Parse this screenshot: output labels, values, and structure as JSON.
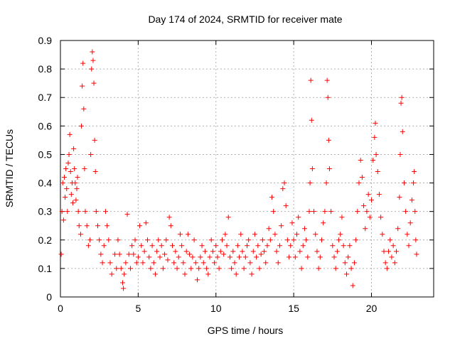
{
  "chart_data": {
    "type": "scatter",
    "title": "Day 174 of 2024, SRMTID for receiver mate",
    "xlabel": "GPS time / hours",
    "ylabel": "SRMTID / TECUs",
    "xlim": [
      0,
      24
    ],
    "ylim": [
      0,
      0.9
    ],
    "xticks": [
      0,
      5,
      10,
      15,
      20
    ],
    "xtick_labels": [
      "0",
      "5",
      "10",
      "15",
      "20"
    ],
    "yticks": [
      0,
      0.1,
      0.2,
      0.3,
      0.4,
      0.5,
      0.6,
      0.7,
      0.8,
      0.9
    ],
    "ytick_labels": [
      "0",
      "0.1",
      "0.2",
      "0.3",
      "0.4",
      "0.5",
      "0.6",
      "0.7",
      "0.8",
      "0.9"
    ],
    "grid": true,
    "marker": "+",
    "color": "#ff0000",
    "series": [
      {
        "name": "SRMTID",
        "points": [
          [
            0.05,
            0.15
          ],
          [
            0.1,
            0.3
          ],
          [
            0.15,
            0.4
          ],
          [
            0.2,
            0.27
          ],
          [
            0.25,
            0.42
          ],
          [
            0.3,
            0.35
          ],
          [
            0.35,
            0.45
          ],
          [
            0.4,
            0.38
          ],
          [
            0.45,
            0.3
          ],
          [
            0.5,
            0.47
          ],
          [
            0.55,
            0.5
          ],
          [
            0.6,
            0.57
          ],
          [
            0.65,
            0.44
          ],
          [
            0.7,
            0.36
          ],
          [
            0.75,
            0.4
          ],
          [
            0.8,
            0.33
          ],
          [
            0.85,
            0.52
          ],
          [
            0.9,
            0.45
          ],
          [
            0.95,
            0.4
          ],
          [
            1.0,
            0.34
          ],
          [
            1.05,
            0.38
          ],
          [
            1.1,
            0.42
          ],
          [
            1.15,
            0.3
          ],
          [
            1.2,
            0.25
          ],
          [
            1.3,
            0.22
          ],
          [
            1.35,
            0.6
          ],
          [
            1.4,
            0.74
          ],
          [
            1.45,
            0.82
          ],
          [
            1.5,
            0.66
          ],
          [
            1.55,
            0.45
          ],
          [
            1.6,
            0.3
          ],
          [
            1.7,
            0.25
          ],
          [
            1.8,
            0.18
          ],
          [
            1.9,
            0.2
          ],
          [
            1.95,
            0.5
          ],
          [
            2.0,
            0.8
          ],
          [
            2.05,
            0.86
          ],
          [
            2.1,
            0.83
          ],
          [
            2.15,
            0.75
          ],
          [
            2.2,
            0.55
          ],
          [
            2.25,
            0.44
          ],
          [
            2.3,
            0.3
          ],
          [
            2.4,
            0.25
          ],
          [
            2.5,
            0.2
          ],
          [
            2.6,
            0.15
          ],
          [
            2.7,
            0.12
          ],
          [
            2.8,
            0.18
          ],
          [
            2.9,
            0.3
          ],
          [
            3.0,
            0.25
          ],
          [
            3.1,
            0.2
          ],
          [
            3.2,
            0.12
          ],
          [
            3.3,
            0.08
          ],
          [
            3.5,
            0.15
          ],
          [
            3.6,
            0.1
          ],
          [
            3.7,
            0.2
          ],
          [
            3.8,
            0.15
          ],
          [
            3.9,
            0.1
          ],
          [
            4.0,
            0.05
          ],
          [
            4.05,
            0.03
          ],
          [
            4.1,
            0.08
          ],
          [
            4.2,
            0.12
          ],
          [
            4.3,
            0.29
          ],
          [
            4.4,
            0.15
          ],
          [
            4.5,
            0.1
          ],
          [
            4.6,
            0.18
          ],
          [
            4.7,
            0.15
          ],
          [
            4.8,
            0.2
          ],
          [
            4.9,
            0.12
          ],
          [
            5.0,
            0.14
          ],
          [
            5.1,
            0.25
          ],
          [
            5.2,
            0.18
          ],
          [
            5.3,
            0.12
          ],
          [
            5.4,
            0.16
          ],
          [
            5.5,
            0.26
          ],
          [
            5.6,
            0.2
          ],
          [
            5.7,
            0.14
          ],
          [
            5.8,
            0.1
          ],
          [
            5.9,
            0.18
          ],
          [
            6.0,
            0.12
          ],
          [
            6.1,
            0.08
          ],
          [
            6.2,
            0.16
          ],
          [
            6.3,
            0.2
          ],
          [
            6.4,
            0.14
          ],
          [
            6.5,
            0.18
          ],
          [
            6.6,
            0.1
          ],
          [
            6.7,
            0.15
          ],
          [
            6.8,
            0.2
          ],
          [
            6.9,
            0.13
          ],
          [
            7.0,
            0.28
          ],
          [
            7.1,
            0.25
          ],
          [
            7.2,
            0.18
          ],
          [
            7.3,
            0.12
          ],
          [
            7.4,
            0.16
          ],
          [
            7.5,
            0.1
          ],
          [
            7.6,
            0.14
          ],
          [
            7.7,
            0.22
          ],
          [
            7.8,
            0.18
          ],
          [
            7.9,
            0.12
          ],
          [
            8.0,
            0.08
          ],
          [
            8.1,
            0.16
          ],
          [
            8.2,
            0.22
          ],
          [
            8.3,
            0.15
          ],
          [
            8.4,
            0.1
          ],
          [
            8.5,
            0.14
          ],
          [
            8.6,
            0.2
          ],
          [
            8.7,
            0.12
          ],
          [
            8.8,
            0.06
          ],
          [
            8.9,
            0.1
          ],
          [
            9.0,
            0.14
          ],
          [
            9.1,
            0.18
          ],
          [
            9.2,
            0.12
          ],
          [
            9.3,
            0.16
          ],
          [
            9.4,
            0.1
          ],
          [
            9.5,
            0.08
          ],
          [
            9.6,
            0.14
          ],
          [
            9.7,
            0.2
          ],
          [
            9.8,
            0.16
          ],
          [
            9.9,
            0.12
          ],
          [
            10.0,
            0.18
          ],
          [
            10.1,
            0.14
          ],
          [
            10.2,
            0.1
          ],
          [
            10.3,
            0.16
          ],
          [
            10.4,
            0.2
          ],
          [
            10.5,
            0.15
          ],
          [
            10.6,
            0.22
          ],
          [
            10.7,
            0.18
          ],
          [
            10.8,
            0.28
          ],
          [
            10.9,
            0.14
          ],
          [
            11.0,
            0.1
          ],
          [
            11.1,
            0.16
          ],
          [
            11.2,
            0.12
          ],
          [
            11.3,
            0.08
          ],
          [
            11.4,
            0.18
          ],
          [
            11.5,
            0.14
          ],
          [
            11.6,
            0.22
          ],
          [
            11.7,
            0.16
          ],
          [
            11.8,
            0.1
          ],
          [
            11.9,
            0.14
          ],
          [
            12.0,
            0.18
          ],
          [
            12.1,
            0.2
          ],
          [
            12.2,
            0.12
          ],
          [
            12.3,
            0.08
          ],
          [
            12.4,
            0.16
          ],
          [
            12.5,
            0.22
          ],
          [
            12.6,
            0.14
          ],
          [
            12.7,
            0.18
          ],
          [
            12.8,
            0.1
          ],
          [
            12.9,
            0.15
          ],
          [
            13.0,
            0.2
          ],
          [
            13.1,
            0.16
          ],
          [
            13.2,
            0.12
          ],
          [
            13.3,
            0.18
          ],
          [
            13.4,
            0.24
          ],
          [
            13.5,
            0.2
          ],
          [
            13.6,
            0.35
          ],
          [
            13.7,
            0.3
          ],
          [
            13.8,
            0.22
          ],
          [
            13.9,
            0.16
          ],
          [
            14.0,
            0.12
          ],
          [
            14.1,
            0.18
          ],
          [
            14.2,
            0.25
          ],
          [
            14.3,
            0.38
          ],
          [
            14.4,
            0.4
          ],
          [
            14.5,
            0.32
          ],
          [
            14.6,
            0.2
          ],
          [
            14.7,
            0.14
          ],
          [
            14.8,
            0.18
          ],
          [
            14.9,
            0.26
          ],
          [
            15.0,
            0.2
          ],
          [
            15.1,
            0.14
          ],
          [
            15.2,
            0.22
          ],
          [
            15.3,
            0.28
          ],
          [
            15.4,
            0.16
          ],
          [
            15.5,
            0.1
          ],
          [
            15.6,
            0.18
          ],
          [
            15.7,
            0.24
          ],
          [
            15.8,
            0.2
          ],
          [
            15.9,
            0.14
          ],
          [
            16.0,
            0.3
          ],
          [
            16.05,
            0.4
          ],
          [
            16.1,
            0.76
          ],
          [
            16.15,
            0.62
          ],
          [
            16.2,
            0.45
          ],
          [
            16.3,
            0.3
          ],
          [
            16.4,
            0.22
          ],
          [
            16.5,
            0.16
          ],
          [
            16.6,
            0.1
          ],
          [
            16.7,
            0.14
          ],
          [
            16.8,
            0.2
          ],
          [
            16.9,
            0.26
          ],
          [
            17.0,
            0.3
          ],
          [
            17.1,
            0.4
          ],
          [
            17.15,
            0.76
          ],
          [
            17.2,
            0.7
          ],
          [
            17.25,
            0.55
          ],
          [
            17.3,
            0.45
          ],
          [
            17.4,
            0.3
          ],
          [
            17.5,
            0.18
          ],
          [
            17.6,
            0.14
          ],
          [
            17.7,
            0.1
          ],
          [
            17.8,
            0.16
          ],
          [
            17.9,
            0.2
          ],
          [
            18.0,
            0.22
          ],
          [
            18.1,
            0.28
          ],
          [
            18.2,
            0.18
          ],
          [
            18.3,
            0.12
          ],
          [
            18.4,
            0.08
          ],
          [
            18.5,
            0.14
          ],
          [
            18.6,
            0.18
          ],
          [
            18.7,
            0.1
          ],
          [
            18.8,
            0.04
          ],
          [
            18.9,
            0.12
          ],
          [
            19.0,
            0.2
          ],
          [
            19.1,
            0.3
          ],
          [
            19.2,
            0.4
          ],
          [
            19.3,
            0.48
          ],
          [
            19.4,
            0.42
          ],
          [
            19.5,
            0.32
          ],
          [
            19.6,
            0.24
          ],
          [
            19.7,
            0.3
          ],
          [
            19.8,
            0.36
          ],
          [
            19.9,
            0.28
          ],
          [
            20.0,
            0.34
          ],
          [
            20.1,
            0.48
          ],
          [
            20.2,
            0.56
          ],
          [
            20.25,
            0.61
          ],
          [
            20.3,
            0.5
          ],
          [
            20.4,
            0.44
          ],
          [
            20.5,
            0.36
          ],
          [
            20.6,
            0.28
          ],
          [
            20.7,
            0.22
          ],
          [
            20.8,
            0.16
          ],
          [
            20.9,
            0.12
          ],
          [
            21.0,
            0.1
          ],
          [
            21.1,
            0.16
          ],
          [
            21.2,
            0.2
          ],
          [
            21.3,
            0.14
          ],
          [
            21.4,
            0.18
          ],
          [
            21.5,
            0.12
          ],
          [
            21.6,
            0.16
          ],
          [
            21.7,
            0.24
          ],
          [
            21.8,
            0.35
          ],
          [
            21.85,
            0.5
          ],
          [
            21.9,
            0.68
          ],
          [
            21.95,
            0.7
          ],
          [
            22.0,
            0.58
          ],
          [
            22.1,
            0.4
          ],
          [
            22.2,
            0.3
          ],
          [
            22.3,
            0.22
          ],
          [
            22.4,
            0.18
          ],
          [
            22.5,
            0.26
          ],
          [
            22.6,
            0.34
          ],
          [
            22.7,
            0.4
          ],
          [
            22.75,
            0.44
          ],
          [
            22.8,
            0.3
          ],
          [
            22.85,
            0.2
          ],
          [
            22.9,
            0.15
          ]
        ]
      }
    ]
  }
}
